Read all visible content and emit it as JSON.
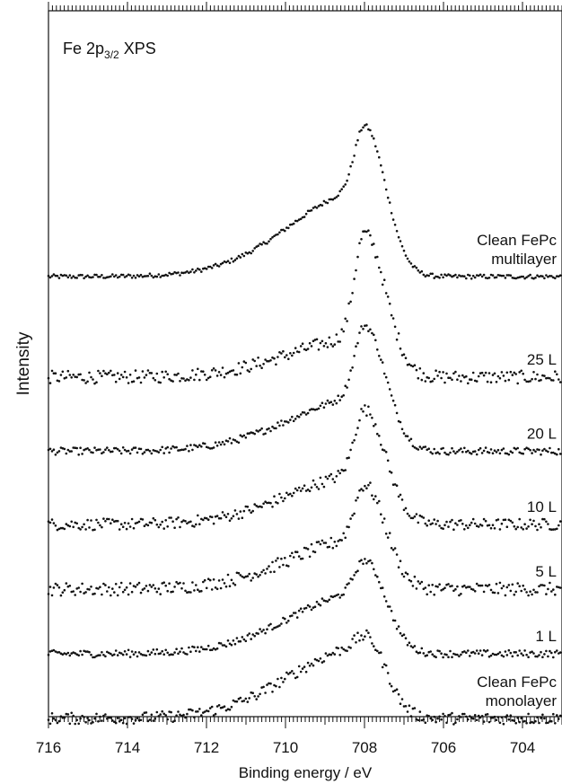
{
  "chart_data": {
    "type": "scatter",
    "title": "",
    "xlabel": "Binding energy / eV",
    "ylabel": "Intensity",
    "xlim": [
      716,
      703
    ],
    "x_reversed": true,
    "x_ticks": [
      716,
      714,
      712,
      710,
      708,
      706,
      704
    ],
    "y_ticks": [],
    "grid": false,
    "legend": "none",
    "annotation": {
      "prefix": "Fe 2p",
      "subscript": "3/2",
      "suffix": " XPS"
    },
    "series": [
      {
        "name": "Clean FePc multilayer",
        "label_lines": [
          "Clean FePc",
          "multilayer"
        ],
        "offset": 5.6,
        "base": 0.0,
        "peak_height": 2.1,
        "shoulder_height": 1.2,
        "noise": 0.03
      },
      {
        "name": "25 L",
        "label_lines": [
          "25 L"
        ],
        "offset": 4.1,
        "base": 0.1,
        "peak_height": 2.0,
        "shoulder_height": 0.55,
        "noise": 0.09
      },
      {
        "name": "20 L",
        "label_lines": [
          "20 L"
        ],
        "offset": 3.15,
        "base": 0.02,
        "peak_height": 1.75,
        "shoulder_height": 0.75,
        "noise": 0.05
      },
      {
        "name": "10 L",
        "label_lines": [
          "10 L"
        ],
        "offset": 2.1,
        "base": 0.05,
        "peak_height": 1.6,
        "shoulder_height": 0.7,
        "noise": 0.08
      },
      {
        "name": "5 L",
        "label_lines": [
          "5 L"
        ],
        "offset": 1.15,
        "base": 0.1,
        "peak_height": 1.45,
        "shoulder_height": 0.7,
        "noise": 0.09
      },
      {
        "name": "1 L",
        "label_lines": [
          "1 L"
        ],
        "offset": 0.35,
        "base": 0.0,
        "peak_height": 1.3,
        "shoulder_height": 0.85,
        "noise": 0.05
      },
      {
        "name": "Clean FePc monolayer",
        "label_lines": [
          "Clean FePc",
          "monolayer"
        ],
        "offset": -0.6,
        "base": 0.05,
        "peak_height": 1.15,
        "shoulder_height": 1.0,
        "noise": 0.08
      }
    ]
  }
}
